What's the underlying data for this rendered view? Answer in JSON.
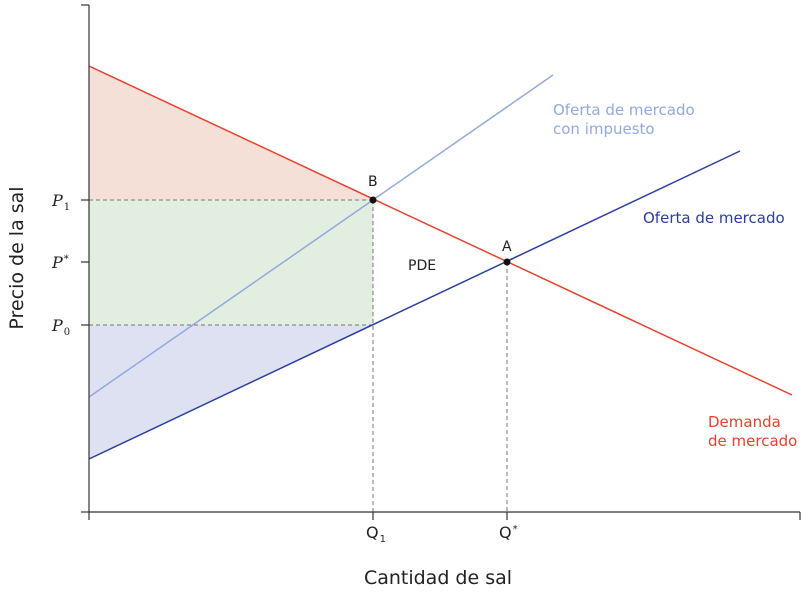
{
  "axes": {
    "x_title": "Cantidad de sal",
    "y_title": "Precio de la sal"
  },
  "y_ticks": {
    "p1": {
      "base": "P",
      "sub": "1"
    },
    "pstar": {
      "base": "P",
      "sup": "*"
    },
    "p0": {
      "base": "P",
      "sub": "0"
    }
  },
  "x_ticks": {
    "q1": {
      "base": "Q",
      "sub": "1"
    },
    "qstar": {
      "base": "Q",
      "sup": "*"
    }
  },
  "curves": {
    "taxed_supply": {
      "line1": "Oferta de mercado",
      "line2": "con impuesto"
    },
    "supply": {
      "label": "Oferta de mercado"
    },
    "demand": {
      "line1": "Demanda",
      "line2": "de mercado"
    }
  },
  "points": {
    "a": "A",
    "b": "B"
  },
  "areas": {
    "deadweight_loss": "PDE"
  },
  "colors": {
    "demand": "#e8412c",
    "supply": "#2b3d9e",
    "taxed_supply": "#92a8e0",
    "consumer_surplus": "#f4e0d6",
    "tax_revenue": "#e2eedf",
    "producer_surplus": "#dde1f1",
    "axis": "#333333",
    "guide": "#777777"
  }
}
